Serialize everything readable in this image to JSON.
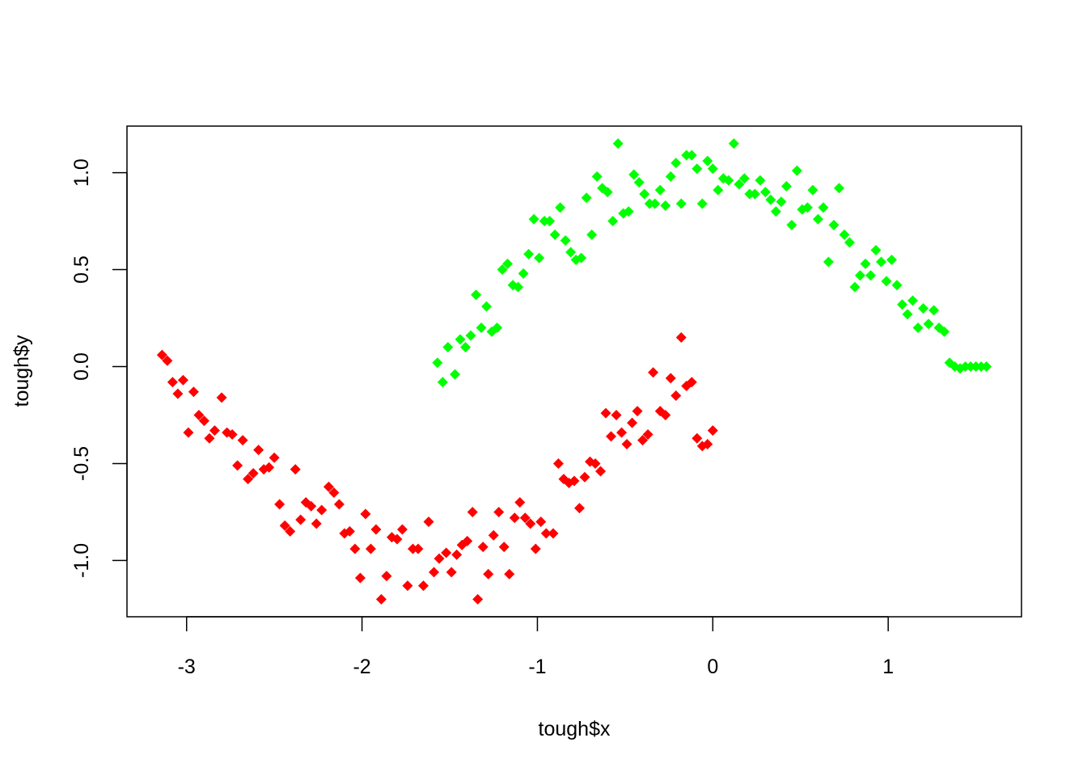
{
  "chart_data": {
    "type": "scatter",
    "title": "",
    "xlabel": "tough$x",
    "ylabel": "tough$y",
    "xlim": [
      -3.34,
      1.76
    ],
    "ylim": [
      -1.29,
      1.24
    ],
    "grid": false,
    "legend": "none",
    "marker": "filled-diamond",
    "x_ticks": [
      {
        "value": -3,
        "label": "-3"
      },
      {
        "value": -2,
        "label": "-2"
      },
      {
        "value": -1,
        "label": "-1"
      },
      {
        "value": 0,
        "label": "0"
      },
      {
        "value": 1,
        "label": "1"
      }
    ],
    "y_ticks": [
      {
        "value": -1.0,
        "label": "-1.0"
      },
      {
        "value": -0.5,
        "label": "-0.5"
      },
      {
        "value": 0.0,
        "label": "0.0"
      },
      {
        "value": 0.5,
        "label": "0.5"
      },
      {
        "value": 1.0,
        "label": "1.0"
      }
    ],
    "series": [
      {
        "color": "#ff0000",
        "x": [
          -3.14,
          -3.11,
          -3.08,
          -3.05,
          -3.02,
          -2.99,
          -2.96,
          -2.93,
          -2.9,
          -2.87,
          -2.84,
          -2.8,
          -2.77,
          -2.74,
          -2.71,
          -2.68,
          -2.65,
          -2.62,
          -2.59,
          -2.56,
          -2.53,
          -2.5,
          -2.47,
          -2.44,
          -2.41,
          -2.38,
          -2.35,
          -2.32,
          -2.29,
          -2.26,
          -2.23,
          -2.19,
          -2.16,
          -2.13,
          -2.1,
          -2.07,
          -2.04,
          -2.01,
          -1.98,
          -1.95,
          -1.92,
          -1.89,
          -1.86,
          -1.83,
          -1.8,
          -1.77,
          -1.74,
          -1.71,
          -1.68,
          -1.65,
          -1.62,
          -1.59,
          -1.56,
          -1.52,
          -1.49,
          -1.46,
          -1.43,
          -1.4,
          -1.37,
          -1.34,
          -1.31,
          -1.28,
          -1.25,
          -1.22,
          -1.19,
          -1.16,
          -1.13,
          -1.1,
          -1.07,
          -1.04,
          -1.01,
          -0.98,
          -0.95,
          -0.91,
          -0.88,
          -0.85,
          -0.82,
          -0.79,
          -0.76,
          -0.73,
          -0.7,
          -0.67,
          -0.64,
          -0.61,
          -0.58,
          -0.55,
          -0.52,
          -0.49,
          -0.46,
          -0.43,
          -0.4,
          -0.37,
          -0.34,
          -0.3,
          -0.27,
          -0.24,
          -0.21,
          -0.18,
          -0.15,
          -0.12,
          -0.09,
          -0.06,
          -0.03,
          0.0
        ],
        "y": [
          0.06,
          0.03,
          -0.08,
          -0.14,
          -0.07,
          -0.34,
          -0.13,
          -0.25,
          -0.28,
          -0.37,
          -0.33,
          -0.16,
          -0.34,
          -0.35,
          -0.51,
          -0.38,
          -0.58,
          -0.55,
          -0.43,
          -0.53,
          -0.52,
          -0.47,
          -0.71,
          -0.82,
          -0.85,
          -0.53,
          -0.79,
          -0.7,
          -0.72,
          -0.81,
          -0.74,
          -0.62,
          -0.65,
          -0.71,
          -0.86,
          -0.85,
          -0.94,
          -1.09,
          -0.76,
          -0.94,
          -0.84,
          -1.2,
          -1.08,
          -0.88,
          -0.89,
          -0.84,
          -1.13,
          -0.94,
          -0.94,
          -1.13,
          -0.8,
          -1.06,
          -0.99,
          -0.96,
          -1.06,
          -0.97,
          -0.92,
          -0.9,
          -0.75,
          -1.2,
          -0.93,
          -1.07,
          -0.87,
          -0.75,
          -0.93,
          -1.07,
          -0.78,
          -0.7,
          -0.78,
          -0.81,
          -0.94,
          -0.8,
          -0.86,
          -0.86,
          -0.5,
          -0.58,
          -0.6,
          -0.59,
          -0.73,
          -0.57,
          -0.49,
          -0.5,
          -0.54,
          -0.24,
          -0.36,
          -0.25,
          -0.34,
          -0.4,
          -0.29,
          -0.23,
          -0.38,
          -0.35,
          -0.03,
          -0.23,
          -0.25,
          -0.06,
          -0.15,
          0.15,
          -0.1,
          -0.08,
          -0.37,
          -0.41,
          -0.4,
          -0.33
        ]
      },
      {
        "color": "#00ff00",
        "x": [
          -1.57,
          -1.54,
          -1.51,
          -1.47,
          -1.44,
          -1.41,
          -1.38,
          -1.35,
          -1.32,
          -1.29,
          -1.26,
          -1.23,
          -1.2,
          -1.17,
          -1.14,
          -1.11,
          -1.08,
          -1.05,
          -1.02,
          -0.99,
          -0.96,
          -0.93,
          -0.9,
          -0.87,
          -0.84,
          -0.81,
          -0.78,
          -0.75,
          -0.72,
          -0.69,
          -0.66,
          -0.63,
          -0.6,
          -0.57,
          -0.54,
          -0.51,
          -0.48,
          -0.45,
          -0.42,
          -0.39,
          -0.36,
          -0.33,
          -0.3,
          -0.27,
          -0.24,
          -0.21,
          -0.18,
          -0.15,
          -0.12,
          -0.09,
          -0.06,
          -0.03,
          0.0,
          0.03,
          0.06,
          0.09,
          0.12,
          0.15,
          0.18,
          0.21,
          0.24,
          0.27,
          0.3,
          0.33,
          0.36,
          0.39,
          0.42,
          0.45,
          0.48,
          0.51,
          0.54,
          0.57,
          0.6,
          0.63,
          0.66,
          0.69,
          0.72,
          0.75,
          0.78,
          0.81,
          0.84,
          0.87,
          0.9,
          0.93,
          0.96,
          0.99,
          1.02,
          1.05,
          1.08,
          1.11,
          1.14,
          1.17,
          1.2,
          1.23,
          1.26,
          1.29,
          1.32,
          1.35,
          1.38,
          1.41,
          1.44,
          1.47,
          1.5,
          1.53,
          1.56
        ],
        "y": [
          0.02,
          -0.08,
          0.1,
          -0.04,
          0.14,
          0.1,
          0.16,
          0.37,
          0.2,
          0.31,
          0.18,
          0.2,
          0.5,
          0.53,
          0.42,
          0.41,
          0.48,
          0.58,
          0.76,
          0.56,
          0.75,
          0.75,
          0.68,
          0.82,
          0.65,
          0.59,
          0.55,
          0.56,
          0.87,
          0.68,
          0.98,
          0.92,
          0.9,
          0.75,
          1.15,
          0.79,
          0.8,
          0.99,
          0.95,
          0.89,
          0.84,
          0.84,
          0.91,
          0.83,
          0.98,
          1.05,
          0.84,
          1.09,
          1.09,
          1.02,
          0.84,
          1.06,
          1.02,
          0.91,
          0.97,
          0.96,
          1.15,
          0.94,
          0.97,
          0.89,
          0.89,
          0.96,
          0.9,
          0.86,
          0.8,
          0.85,
          0.93,
          0.73,
          1.01,
          0.81,
          0.82,
          0.91,
          0.76,
          0.82,
          0.54,
          0.73,
          0.92,
          0.68,
          0.64,
          0.41,
          0.47,
          0.53,
          0.47,
          0.6,
          0.54,
          0.44,
          0.55,
          0.42,
          0.32,
          0.27,
          0.34,
          0.2,
          0.3,
          0.22,
          0.29,
          0.2,
          0.18,
          0.02,
          0.0,
          -0.01,
          0.0,
          0.0,
          0.0,
          0.0,
          0.0
        ]
      }
    ]
  }
}
